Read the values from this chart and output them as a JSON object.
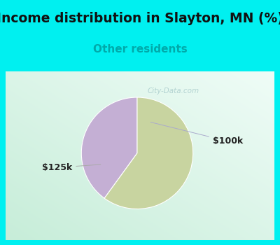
{
  "title": "Income distribution in Slayton, MN (%)",
  "subtitle": "Other residents",
  "slices": [
    40,
    60
  ],
  "labels": [
    "$100k",
    "$125k"
  ],
  "colors": [
    "#c4afd4",
    "#c8d4a0"
  ],
  "bg_cyan": "#00f0f0",
  "bg_chart_left": "#c8ecd8",
  "bg_chart_right": "#f0f8f8",
  "title_fontsize": 13.5,
  "subtitle_fontsize": 11,
  "subtitle_color": "#00aaaa",
  "label_fontsize": 9,
  "watermark": "City-Data.com",
  "watermark_color": "#aacccc",
  "startangle": 90,
  "label_color": "#222222"
}
